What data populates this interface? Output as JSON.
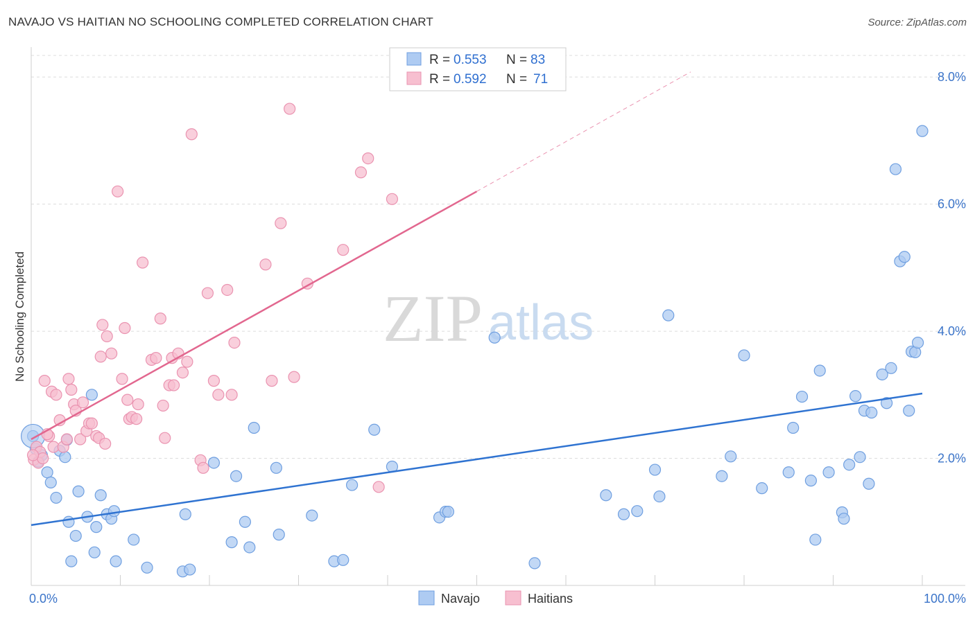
{
  "title": "NAVAJO VS HAITIAN NO SCHOOLING COMPLETED CORRELATION CHART",
  "source": "Source: ZipAtlas.com",
  "watermark": {
    "zip": "ZIP",
    "atlas": "atlas"
  },
  "legend_top": [
    {
      "r_label": "R = ",
      "r_value": "0.553",
      "n_label": "N = ",
      "n_value": "83"
    },
    {
      "r_label": "R = ",
      "r_value": "0.592",
      "n_label": "N = ",
      "n_value": "71"
    }
  ],
  "legend_bottom": [
    "Navajo",
    "Haitians"
  ],
  "colors": {
    "navajo_fill": "#aecbf2",
    "navajo_stroke": "#6f9fe0",
    "navajo_line": "#2f73d1",
    "haitian_fill": "#f7bfd0",
    "haitian_stroke": "#ea93b0",
    "haitian_line": "#e2678f",
    "grid": "#dcdcdc",
    "tick_text": "#3b74c9"
  },
  "chart_data": {
    "type": "scatter",
    "title": "NAVAJO VS HAITIAN NO SCHOOLING COMPLETED CORRELATION CHART",
    "xlabel": "",
    "ylabel": "No Schooling Completed",
    "xlim": [
      0,
      100
    ],
    "ylim": [
      0,
      8.0
    ],
    "x_ticks": [
      "0.0%",
      "100.0%"
    ],
    "y_ticks": [
      {
        "value": 2.0,
        "label": "2.0%"
      },
      {
        "value": 4.0,
        "label": "4.0%"
      },
      {
        "value": 6.0,
        "label": "6.0%"
      },
      {
        "value": 8.0,
        "label": "8.0%"
      }
    ],
    "grid": true,
    "legend": "bottom-center",
    "series": [
      {
        "name": "Navajo",
        "r": 0.553,
        "n": 83,
        "trend": {
          "x0": 0,
          "y0": 0.95,
          "x1": 100,
          "y1": 3.02
        },
        "points": [
          [
            0.2,
            2.35
          ],
          [
            0.5,
            2.15
          ],
          [
            0.8,
            1.95
          ],
          [
            1.2,
            2.05
          ],
          [
            1.8,
            1.78
          ],
          [
            2.2,
            1.62
          ],
          [
            3.2,
            2.12
          ],
          [
            3.8,
            2.02
          ],
          [
            4.0,
            2.29
          ],
          [
            2.8,
            1.38
          ],
          [
            5.3,
            1.48
          ],
          [
            6.8,
            3.0
          ],
          [
            4.2,
            1.0
          ],
          [
            5.0,
            0.78
          ],
          [
            6.3,
            1.08
          ],
          [
            7.3,
            0.92
          ],
          [
            7.8,
            1.42
          ],
          [
            8.5,
            1.12
          ],
          [
            9.0,
            1.05
          ],
          [
            9.3,
            1.17
          ],
          [
            4.5,
            0.38
          ],
          [
            7.1,
            0.52
          ],
          [
            9.5,
            0.38
          ],
          [
            11.5,
            0.72
          ],
          [
            13.0,
            0.28
          ],
          [
            17.3,
            1.12
          ],
          [
            17.0,
            0.22
          ],
          [
            17.8,
            0.25
          ],
          [
            20.5,
            1.93
          ],
          [
            22.5,
            0.68
          ],
          [
            23.0,
            1.72
          ],
          [
            24.0,
            1.0
          ],
          [
            24.5,
            0.6
          ],
          [
            25.0,
            2.48
          ],
          [
            27.5,
            1.85
          ],
          [
            27.8,
            0.8
          ],
          [
            31.5,
            1.1
          ],
          [
            34.0,
            0.38
          ],
          [
            35.0,
            0.4
          ],
          [
            36.0,
            1.58
          ],
          [
            38.5,
            2.45
          ],
          [
            40.5,
            1.87
          ],
          [
            45.8,
            1.07
          ],
          [
            46.5,
            1.16
          ],
          [
            46.8,
            1.16
          ],
          [
            52.0,
            3.9
          ],
          [
            56.5,
            0.35
          ],
          [
            64.5,
            1.42
          ],
          [
            66.5,
            1.12
          ],
          [
            68.0,
            1.17
          ],
          [
            70.0,
            1.82
          ],
          [
            70.5,
            1.4
          ],
          [
            71.5,
            4.25
          ],
          [
            77.5,
            1.72
          ],
          [
            78.5,
            2.03
          ],
          [
            80.0,
            3.62
          ],
          [
            82.0,
            1.53
          ],
          [
            85.0,
            1.78
          ],
          [
            85.5,
            2.48
          ],
          [
            86.5,
            2.97
          ],
          [
            87.5,
            1.65
          ],
          [
            88.0,
            0.72
          ],
          [
            88.5,
            3.38
          ],
          [
            89.5,
            1.78
          ],
          [
            91.0,
            1.15
          ],
          [
            91.2,
            1.05
          ],
          [
            91.8,
            1.9
          ],
          [
            92.5,
            2.98
          ],
          [
            93.0,
            2.02
          ],
          [
            93.5,
            2.75
          ],
          [
            94.0,
            1.6
          ],
          [
            94.3,
            2.72
          ],
          [
            95.5,
            3.32
          ],
          [
            96.5,
            3.42
          ],
          [
            96.0,
            2.87
          ],
          [
            97.0,
            6.55
          ],
          [
            97.5,
            5.1
          ],
          [
            98.0,
            5.17
          ],
          [
            98.5,
            2.75
          ],
          [
            98.8,
            3.68
          ],
          [
            99.2,
            3.67
          ],
          [
            99.5,
            3.82
          ],
          [
            100.0,
            7.15
          ]
        ]
      },
      {
        "name": "Haitians",
        "r": 0.592,
        "n": 71,
        "trend": {
          "x0": 0,
          "y0": 2.3,
          "x1": 50,
          "y1": 6.2
        },
        "trend_dashed": {
          "x0": 50,
          "y0": 6.2,
          "x1": 74,
          "y1": 8.08
        },
        "points": [
          [
            0.3,
            1.98
          ],
          [
            0.6,
            2.18
          ],
          [
            0.8,
            1.93
          ],
          [
            1.0,
            2.1
          ],
          [
            1.3,
            2.0
          ],
          [
            1.5,
            3.22
          ],
          [
            2.0,
            2.35
          ],
          [
            2.3,
            3.05
          ],
          [
            2.5,
            2.18
          ],
          [
            2.8,
            3.0
          ],
          [
            3.2,
            2.6
          ],
          [
            3.6,
            2.18
          ],
          [
            4.0,
            2.3
          ],
          [
            4.2,
            3.25
          ],
          [
            4.5,
            3.08
          ],
          [
            4.8,
            2.85
          ],
          [
            5.0,
            2.75
          ],
          [
            5.5,
            2.3
          ],
          [
            5.8,
            2.88
          ],
          [
            6.2,
            2.43
          ],
          [
            6.5,
            2.55
          ],
          [
            6.8,
            2.55
          ],
          [
            7.3,
            2.35
          ],
          [
            7.6,
            2.32
          ],
          [
            7.8,
            3.6
          ],
          [
            8.0,
            4.1
          ],
          [
            8.3,
            2.23
          ],
          [
            8.5,
            3.92
          ],
          [
            9.0,
            3.65
          ],
          [
            9.7,
            6.2
          ],
          [
            10.2,
            3.25
          ],
          [
            10.5,
            4.05
          ],
          [
            10.8,
            2.92
          ],
          [
            11.0,
            2.62
          ],
          [
            11.3,
            2.65
          ],
          [
            11.8,
            2.62
          ],
          [
            12.0,
            2.85
          ],
          [
            12.5,
            5.08
          ],
          [
            13.5,
            3.55
          ],
          [
            14.0,
            3.58
          ],
          [
            14.5,
            4.2
          ],
          [
            14.8,
            2.83
          ],
          [
            15.0,
            2.32
          ],
          [
            15.5,
            3.15
          ],
          [
            15.8,
            3.58
          ],
          [
            16.0,
            3.15
          ],
          [
            16.5,
            3.65
          ],
          [
            17.0,
            3.35
          ],
          [
            17.5,
            3.52
          ],
          [
            18.0,
            7.1
          ],
          [
            19.0,
            1.97
          ],
          [
            19.3,
            1.85
          ],
          [
            19.8,
            4.6
          ],
          [
            20.5,
            3.22
          ],
          [
            21.0,
            3.0
          ],
          [
            22.0,
            4.65
          ],
          [
            22.5,
            3.0
          ],
          [
            22.8,
            3.82
          ],
          [
            26.3,
            5.05
          ],
          [
            27.0,
            3.22
          ],
          [
            28.0,
            5.7
          ],
          [
            29.0,
            7.5
          ],
          [
            29.5,
            3.28
          ],
          [
            31.0,
            4.75
          ],
          [
            35.0,
            5.28
          ],
          [
            37.0,
            6.5
          ],
          [
            37.8,
            6.72
          ],
          [
            39.0,
            1.55
          ],
          [
            40.5,
            6.08
          ],
          [
            0.2,
            2.05
          ],
          [
            1.8,
            2.38
          ]
        ]
      }
    ]
  }
}
